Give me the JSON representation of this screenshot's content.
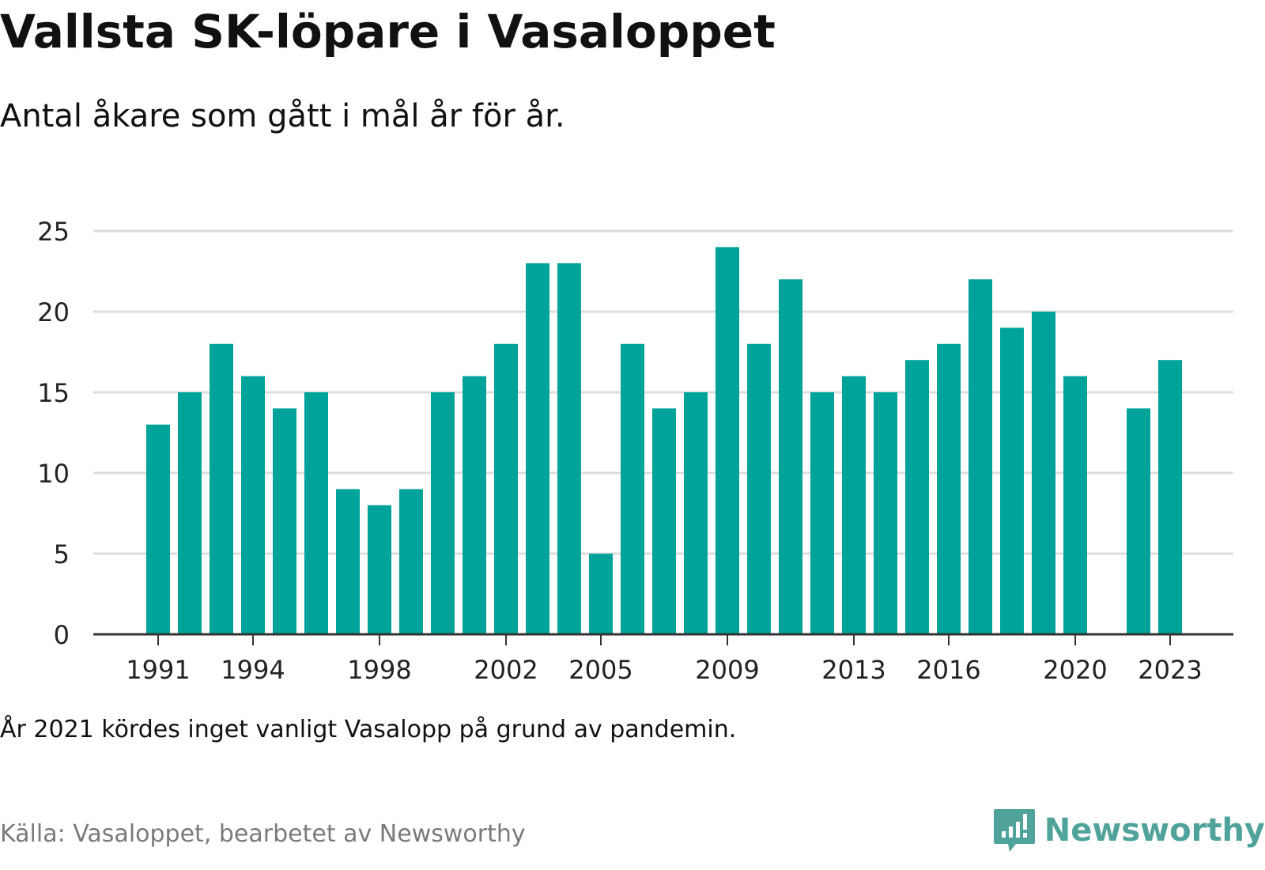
{
  "title": "Vallsta SK-löpare i Vasaloppet",
  "subtitle": "Antal åkare som gått i mål år för år.",
  "note": "År 2021 kördes inget vanligt Vasalopp på grund av pandemin.",
  "source": "Källa: Vasaloppet, bearbetet av Newsworthy",
  "brand": {
    "name": "Newsworthy",
    "icon": "newsworthy-logo-icon"
  },
  "colors": {
    "bar": "#00a39a",
    "grid": "#dddddd",
    "axis": "#333333",
    "brand": "#4fa39a",
    "source": "#7a7a7a"
  },
  "chart_data": {
    "type": "bar",
    "title": "Vallsta SK-löpare i Vasaloppet",
    "subtitle": "Antal åkare som gått i mål år för år.",
    "xlabel": "",
    "ylabel": "",
    "ylim": [
      0,
      25
    ],
    "yticks": [
      0,
      5,
      10,
      15,
      20,
      25
    ],
    "xticks": [
      1991,
      1994,
      1998,
      2002,
      2005,
      2009,
      2013,
      2016,
      2020,
      2023
    ],
    "grid": true,
    "legend": "none",
    "categories": [
      1991,
      1992,
      1993,
      1994,
      1995,
      1996,
      1997,
      1998,
      1999,
      2000,
      2001,
      2002,
      2003,
      2004,
      2005,
      2006,
      2007,
      2008,
      2009,
      2010,
      2011,
      2012,
      2013,
      2014,
      2015,
      2016,
      2017,
      2018,
      2019,
      2020,
      2021,
      2022,
      2023
    ],
    "values": [
      13,
      15,
      18,
      16,
      14,
      15,
      9,
      8,
      9,
      15,
      16,
      18,
      23,
      23,
      5,
      18,
      14,
      15,
      24,
      18,
      22,
      15,
      16,
      15,
      17,
      18,
      22,
      19,
      20,
      16,
      null,
      14,
      17
    ]
  }
}
